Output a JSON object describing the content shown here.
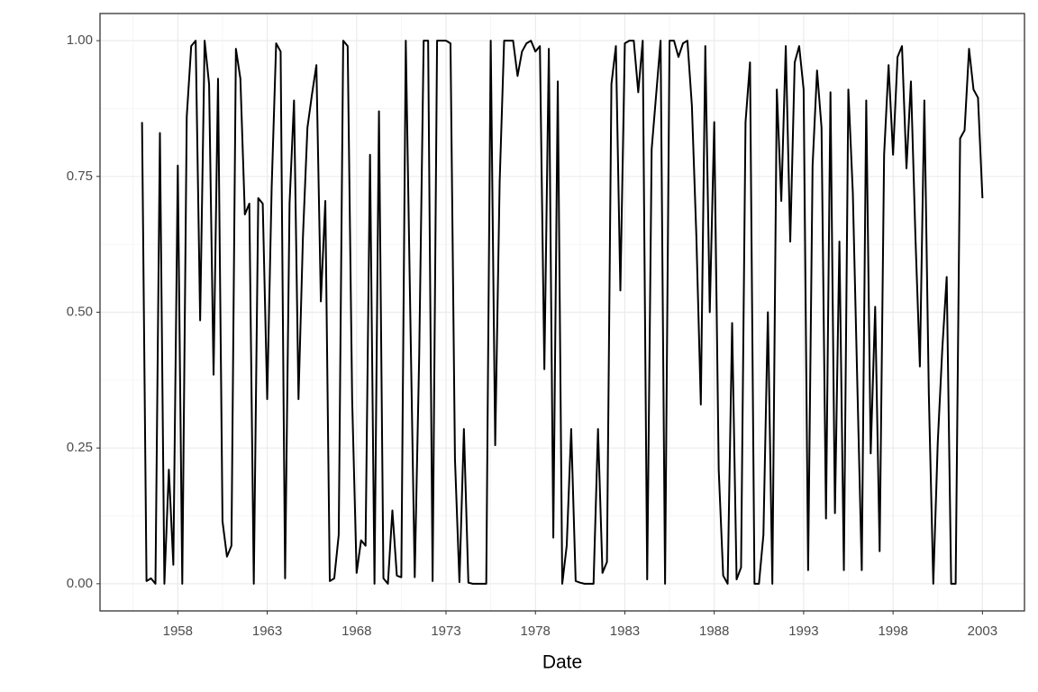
{
  "chart_data": {
    "type": "line",
    "x_label": "Date",
    "x": [
      1956,
      1956.25,
      1956.5,
      1956.75,
      1957,
      1957.25,
      1957.5,
      1957.75,
      1958,
      1958.25,
      1958.5,
      1958.75,
      1959,
      1959.25,
      1959.5,
      1959.75,
      1960,
      1960.25,
      1960.5,
      1960.75,
      1961,
      1961.25,
      1961.5,
      1961.75,
      1962,
      1962.25,
      1962.5,
      1962.75,
      1963,
      1963.25,
      1963.5,
      1963.75,
      1964,
      1964.25,
      1964.5,
      1964.75,
      1965,
      1965.25,
      1965.5,
      1965.75,
      1966,
      1966.25,
      1966.5,
      1966.75,
      1967,
      1967.25,
      1967.5,
      1967.75,
      1968,
      1968.25,
      1968.5,
      1968.75,
      1969,
      1969.25,
      1969.5,
      1969.75,
      1970,
      1970.25,
      1970.5,
      1970.75,
      1971,
      1971.25,
      1971.5,
      1971.75,
      1972,
      1972.25,
      1972.5,
      1972.75,
      1973,
      1973.25,
      1973.5,
      1973.75,
      1974,
      1974.25,
      1974.5,
      1974.75,
      1975,
      1975.25,
      1975.5,
      1975.75,
      1976,
      1976.25,
      1976.5,
      1976.75,
      1977,
      1977.25,
      1977.5,
      1977.75,
      1978,
      1978.25,
      1978.5,
      1978.75,
      1979,
      1979.25,
      1979.5,
      1979.75,
      1980,
      1980.25,
      1980.5,
      1980.75,
      1981,
      1981.25,
      1981.5,
      1981.75,
      1982,
      1982.25,
      1982.5,
      1982.75,
      1983,
      1983.25,
      1983.5,
      1983.75,
      1984,
      1984.25,
      1984.5,
      1984.75,
      1985,
      1985.25,
      1985.5,
      1985.75,
      1986,
      1986.25,
      1986.5,
      1986.75,
      1987,
      1987.25,
      1987.5,
      1987.75,
      1988,
      1988.25,
      1988.5,
      1988.75,
      1989,
      1989.25,
      1989.5,
      1989.75,
      1990,
      1990.25,
      1990.5,
      1990.75,
      1991,
      1991.25,
      1991.5,
      1991.75,
      1992,
      1992.25,
      1992.5,
      1992.75,
      1993,
      1993.25,
      1993.5,
      1993.75,
      1994,
      1994.25,
      1994.5,
      1994.75,
      1995,
      1995.25,
      1995.5,
      1995.75,
      1996,
      1996.25,
      1996.5,
      1996.75,
      1997,
      1997.25,
      1997.5,
      1997.75,
      1998,
      1998.25,
      1998.5,
      1998.75,
      1999,
      1999.25,
      1999.5,
      1999.75,
      2000,
      2000.25,
      2000.5,
      2000.75,
      2001,
      2001.25,
      2001.5,
      2001.75,
      2002,
      2002.25,
      2002.5,
      2002.75,
      2003
    ],
    "values": [
      0.85,
      0.005,
      0.01,
      0.0,
      0.83,
      0.0,
      0.21,
      0.035,
      0.77,
      0.0,
      0.86,
      0.99,
      1.0,
      0.485,
      1.0,
      0.92,
      0.385,
      0.93,
      0.115,
      0.05,
      0.07,
      0.985,
      0.93,
      0.68,
      0.7,
      0.0,
      0.71,
      0.7,
      0.34,
      0.73,
      0.995,
      0.98,
      0.01,
      0.7,
      0.89,
      0.34,
      0.64,
      0.84,
      0.9,
      0.955,
      0.52,
      0.705,
      0.005,
      0.01,
      0.09,
      1.0,
      0.99,
      0.34,
      0.02,
      0.08,
      0.07,
      0.79,
      0.0,
      0.87,
      0.01,
      0.0,
      0.135,
      0.015,
      0.012,
      1.0,
      0.5,
      0.012,
      0.42,
      1.0,
      1.0,
      0.005,
      1.0,
      1.0,
      1.0,
      0.995,
      0.23,
      0.003,
      0.285,
      0.002,
      0.0,
      0.0,
      0.0,
      0.0,
      1.0,
      0.255,
      0.74,
      1.0,
      1.0,
      1.0,
      0.935,
      0.98,
      0.995,
      1.0,
      0.98,
      0.99,
      0.395,
      0.985,
      0.085,
      0.925,
      0.0,
      0.07,
      0.285,
      0.005,
      0.002,
      0.0,
      0.0,
      0.0,
      0.285,
      0.02,
      0.04,
      0.92,
      0.99,
      0.54,
      0.995,
      1.0,
      1.0,
      0.905,
      1.0,
      0.008,
      0.8,
      0.9,
      1.0,
      0.0,
      1.0,
      1.0,
      0.97,
      0.995,
      1.0,
      0.88,
      0.64,
      0.33,
      0.99,
      0.5,
      0.85,
      0.21,
      0.015,
      0.0,
      0.48,
      0.008,
      0.03,
      0.85,
      0.96,
      0.0,
      0.0,
      0.09,
      0.5,
      0.0,
      0.91,
      0.705,
      0.99,
      0.63,
      0.96,
      0.99,
      0.91,
      0.025,
      0.77,
      0.945,
      0.84,
      0.12,
      0.905,
      0.13,
      0.63,
      0.025,
      0.91,
      0.72,
      0.37,
      0.025,
      0.89,
      0.24,
      0.51,
      0.06,
      0.79,
      0.955,
      0.79,
      0.97,
      0.99,
      0.765,
      0.925,
      0.64,
      0.4,
      0.89,
      0.35,
      0.0,
      0.26,
      0.43,
      0.565,
      0.0,
      0.0,
      0.82,
      0.835,
      0.985,
      0.91,
      0.895,
      0.71
    ],
    "color": "#000000",
    "xlim": [
      1953.65,
      2005.35
    ],
    "xticks": [
      1958,
      1963,
      1968,
      1973,
      1978,
      1983,
      1988,
      1993,
      1998,
      2003
    ],
    "ylim": [
      -0.05,
      1.05
    ],
    "yticks": [
      {
        "value": 0,
        "label": "0.00"
      },
      {
        "value": 0.25,
        "label": "0.25"
      },
      {
        "value": 0.5,
        "label": "0.50"
      },
      {
        "value": 0.75,
        "label": "0.75"
      },
      {
        "value": 1,
        "label": "1.00"
      }
    ],
    "grid": true
  }
}
